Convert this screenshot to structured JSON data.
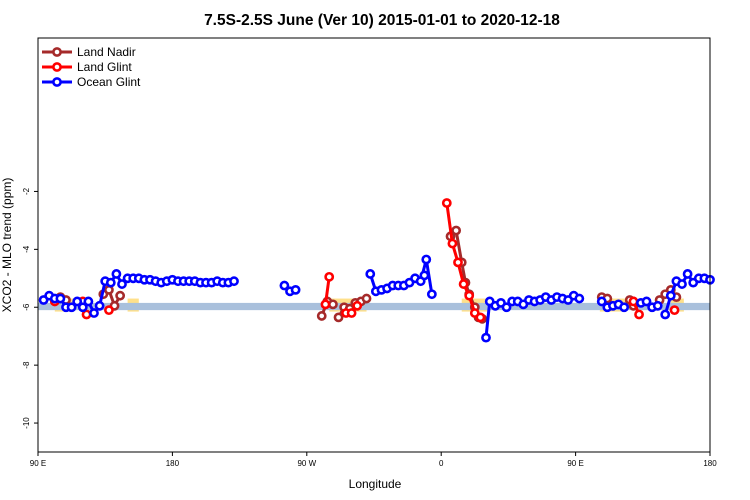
{
  "chart_data": {
    "type": "line",
    "title": "7.5S-2.5S June (Ver 10)   2015-01-01 to 2020-12-18",
    "xlabel": "Longitude",
    "ylabel": "XCO2 - MLO trend (ppm)",
    "xlim": [
      -90,
      270
    ],
    "ylim": [
      -11,
      3.3
    ],
    "x_ticks": [
      {
        "value": -90,
        "label": "90 E"
      },
      {
        "value": -18,
        "label": "180"
      },
      {
        "value": 54,
        "label": "90 W"
      },
      {
        "value": 126,
        "label": "0"
      },
      {
        "value": 198,
        "label": "90 E"
      },
      {
        "value": 270,
        "label": "180"
      }
    ],
    "y_ticks": [
      {
        "value": -2,
        "label": "-2"
      },
      {
        "value": -4,
        "label": "-4"
      },
      {
        "value": -6,
        "label": "-6"
      },
      {
        "value": -8,
        "label": "-8"
      },
      {
        "value": -10,
        "label": "-10"
      }
    ],
    "legend_position": "top-left",
    "reference_band": {
      "y": [
        -6.1,
        -5.85
      ],
      "color": "#a9c0dc"
    },
    "land_areas": {
      "color": "#ffe08a",
      "x_ranges": [
        [
          -81,
          -71
        ],
        [
          -42,
          -36
        ],
        [
          66,
          86
        ],
        [
          137,
          152
        ],
        [
          211,
          225
        ],
        [
          249,
          256
        ]
      ]
    },
    "series": [
      {
        "name": "Land Nadir",
        "color": "#a52a2a",
        "segments": [
          [
            [
              -78,
              -5.65
            ],
            [
              -75,
              -5.75
            ]
          ],
          [
            [
              -55,
              -5.55
            ],
            [
              -52,
              -5.4
            ],
            [
              -49,
              -5.95
            ],
            [
              -46,
              -5.6
            ]
          ],
          [
            [
              62,
              -6.3
            ],
            [
              65,
              -5.8
            ],
            [
              68,
              -5.9
            ]
          ],
          [
            [
              71,
              -6.35
            ],
            [
              74,
              -6.0
            ],
            [
              77,
              -6.05
            ],
            [
              80,
              -5.85
            ],
            [
              83,
              -5.8
            ],
            [
              86,
              -5.7
            ]
          ],
          [
            [
              131,
              -3.55
            ],
            [
              134,
              -3.35
            ],
            [
              137,
              -4.45
            ],
            [
              139,
              -5.15
            ],
            [
              141,
              -5.55
            ],
            [
              144,
              -6.0
            ],
            [
              146,
              -6.35
            ],
            [
              148,
              -6.4
            ]
          ],
          [
            [
              212,
              -5.65
            ],
            [
              215,
              -5.7
            ]
          ],
          [
            [
              227,
              -5.75
            ],
            [
              229,
              -5.95
            ]
          ],
          [
            [
              243,
              -5.75
            ],
            [
              246,
              -5.55
            ],
            [
              249,
              -5.4
            ],
            [
              252,
              -5.65
            ]
          ]
        ]
      },
      {
        "name": "Land Glint",
        "color": "#ff0000",
        "segments": [
          [
            [
              -81,
              -5.8
            ]
          ],
          [
            [
              -66,
              -5.8
            ],
            [
              -64,
              -6.25
            ]
          ],
          [
            [
              -52,
              -6.1
            ]
          ],
          [
            [
              64,
              -5.9
            ],
            [
              66,
              -4.95
            ]
          ],
          [
            [
              75,
              -6.2
            ],
            [
              78,
              -6.2
            ],
            [
              81,
              -5.95
            ]
          ],
          [
            [
              129,
              -2.4
            ],
            [
              132,
              -3.8
            ],
            [
              135,
              -4.45
            ],
            [
              138,
              -5.2
            ],
            [
              141,
              -5.6
            ],
            [
              144,
              -6.2
            ],
            [
              147,
              -6.35
            ]
          ],
          [
            [
              229,
              -5.8
            ],
            [
              232,
              -6.25
            ]
          ],
          [
            [
              251,
              -6.1
            ]
          ]
        ]
      },
      {
        "name": "Ocean Glint",
        "color": "#0000ff",
        "segments": [
          [
            [
              -87,
              -5.75
            ],
            [
              -84,
              -5.6
            ],
            [
              -81,
              -5.7
            ],
            [
              -78,
              -5.7
            ],
            [
              -75,
              -6.0
            ],
            [
              -72,
              -6.0
            ],
            [
              -69,
              -5.8
            ],
            [
              -66,
              -6.0
            ],
            [
              -63,
              -5.8
            ],
            [
              -60,
              -6.2
            ],
            [
              -57,
              -5.95
            ],
            [
              -54,
              -5.1
            ],
            [
              -51,
              -5.15
            ],
            [
              -48,
              -4.85
            ],
            [
              -45,
              -5.2
            ],
            [
              -42,
              -5.0
            ],
            [
              -39,
              -5.0
            ],
            [
              -36,
              -5.0
            ],
            [
              -33,
              -5.05
            ],
            [
              -30,
              -5.05
            ],
            [
              -27,
              -5.1
            ],
            [
              -24,
              -5.15
            ],
            [
              -21,
              -5.1
            ],
            [
              -18,
              -5.05
            ],
            [
              -15,
              -5.1
            ],
            [
              -12,
              -5.1
            ],
            [
              -9,
              -5.1
            ],
            [
              -6,
              -5.1
            ],
            [
              -3,
              -5.15
            ],
            [
              0,
              -5.15
            ],
            [
              3,
              -5.15
            ],
            [
              6,
              -5.1
            ],
            [
              9,
              -5.15
            ],
            [
              12,
              -5.15
            ],
            [
              15,
              -5.1
            ]
          ],
          [
            [
              42,
              -5.25
            ],
            [
              45,
              -5.45
            ],
            [
              48,
              -5.4
            ]
          ],
          [
            [
              88,
              -4.85
            ],
            [
              91,
              -5.45
            ],
            [
              94,
              -5.4
            ],
            [
              97,
              -5.35
            ],
            [
              100,
              -5.25
            ],
            [
              103,
              -5.25
            ],
            [
              106,
              -5.25
            ],
            [
              109,
              -5.15
            ]
          ],
          [
            [
              112,
              -5.0
            ],
            [
              115,
              -5.1
            ],
            [
              118,
              -4.35
            ],
            [
              121,
              -5.55
            ]
          ],
          [
            [
              117,
              -4.9
            ]
          ],
          [
            [
              150,
              -7.05
            ],
            [
              152,
              -5.8
            ],
            [
              155,
              -5.95
            ],
            [
              158,
              -5.85
            ],
            [
              161,
              -6.0
            ],
            [
              164,
              -5.8
            ],
            [
              167,
              -5.8
            ],
            [
              170,
              -5.9
            ],
            [
              173,
              -5.75
            ],
            [
              176,
              -5.8
            ],
            [
              179,
              -5.75
            ],
            [
              182,
              -5.65
            ],
            [
              185,
              -5.75
            ],
            [
              188,
              -5.65
            ],
            [
              191,
              -5.7
            ],
            [
              194,
              -5.75
            ],
            [
              197,
              -5.6
            ],
            [
              200,
              -5.7
            ]
          ],
          [
            [
              212,
              -5.8
            ],
            [
              215,
              -6.0
            ],
            [
              218,
              -5.95
            ],
            [
              221,
              -5.9
            ],
            [
              224,
              -6.0
            ]
          ],
          [
            [
              233,
              -5.85
            ],
            [
              236,
              -5.8
            ],
            [
              239,
              -6.0
            ],
            [
              242,
              -5.95
            ]
          ],
          [
            [
              246,
              -6.25
            ],
            [
              249,
              -5.6
            ],
            [
              252,
              -5.1
            ],
            [
              255,
              -5.2
            ],
            [
              258,
              -4.85
            ],
            [
              261,
              -5.15
            ],
            [
              264,
              -5.0
            ],
            [
              267,
              -5.0
            ],
            [
              270,
              -5.05
            ]
          ]
        ]
      }
    ]
  }
}
